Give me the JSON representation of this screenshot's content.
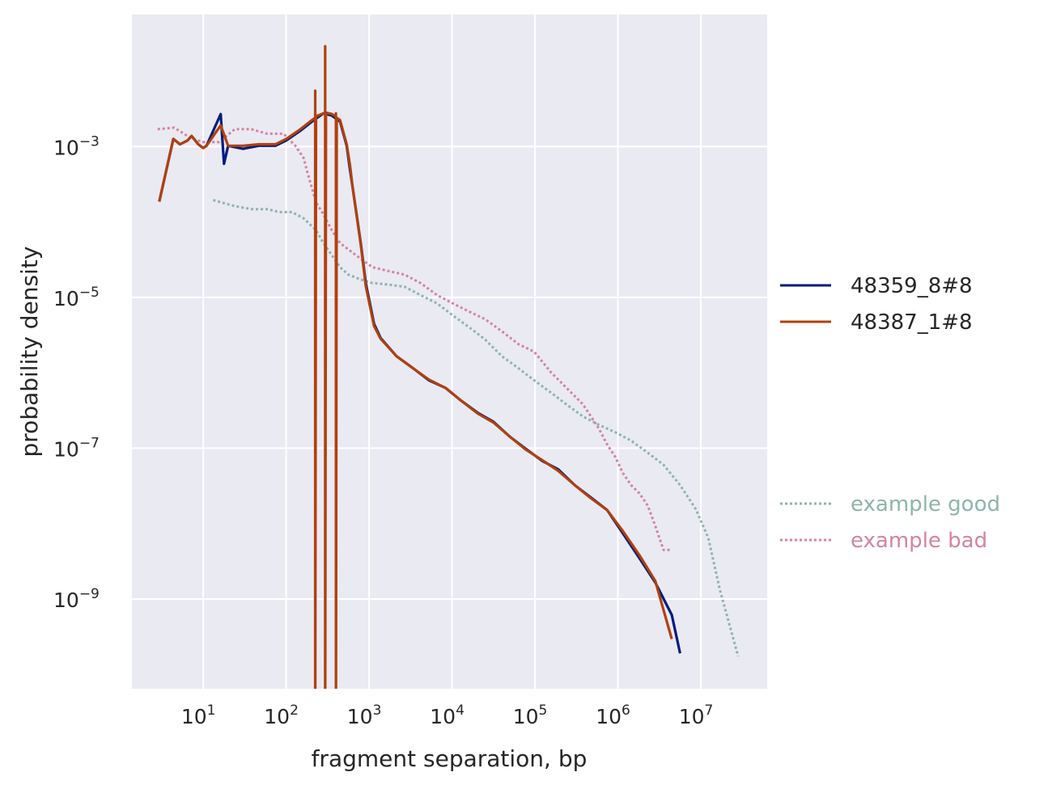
{
  "chart_data": {
    "type": "line",
    "xlabel": "fragment separation, bp",
    "ylabel": "probability density",
    "xscale": "log",
    "yscale": "log",
    "xlim_log10": [
      0.14,
      7.8
    ],
    "ylim_log10": [
      -10.19,
      -1.25
    ],
    "grid": true,
    "legend_placement": "right, outside",
    "x_ticks": [
      {
        "base": "10",
        "exp": "1",
        "log": 1
      },
      {
        "base": "10",
        "exp": "2",
        "log": 2
      },
      {
        "base": "10",
        "exp": "3",
        "log": 3
      },
      {
        "base": "10",
        "exp": "4",
        "log": 4
      },
      {
        "base": "10",
        "exp": "5",
        "log": 5
      },
      {
        "base": "10",
        "exp": "6",
        "log": 6
      },
      {
        "base": "10",
        "exp": "7",
        "log": 7
      }
    ],
    "y_ticks": [
      {
        "base": "10",
        "exp": "−3",
        "log": -3
      },
      {
        "base": "10",
        "exp": "−5",
        "log": -5
      },
      {
        "base": "10",
        "exp": "−7",
        "log": -7
      },
      {
        "base": "10",
        "exp": "−9",
        "log": -9
      }
    ],
    "series": [
      {
        "name": "48359_8#8",
        "color": "#001c7f",
        "style": "solid",
        "x_log10": [
          0.47,
          0.64,
          0.72,
          0.81,
          0.86,
          0.94,
          1.0,
          1.04,
          1.21,
          1.25,
          1.3,
          1.48,
          1.67,
          1.87,
          2.0,
          2.16,
          2.31,
          2.45,
          2.55,
          2.65,
          2.73,
          2.77,
          2.8,
          2.9,
          2.96,
          3.06,
          3.14,
          3.33,
          3.53,
          3.72,
          3.92,
          4.11,
          4.31,
          4.5,
          4.7,
          4.89,
          5.09,
          5.28,
          5.48,
          5.67,
          5.87,
          6.06,
          6.26,
          6.45,
          6.65,
          6.75
        ],
        "y_log10": [
          -3.73,
          -2.9,
          -2.97,
          -2.92,
          -2.86,
          -2.97,
          -3.02,
          -2.99,
          -2.57,
          -3.23,
          -2.99,
          -3.03,
          -2.99,
          -2.99,
          -2.92,
          -2.8,
          -2.67,
          -2.56,
          -2.59,
          -2.67,
          -2.99,
          -3.31,
          -3.53,
          -4.28,
          -4.81,
          -5.35,
          -5.54,
          -5.78,
          -5.94,
          -6.1,
          -6.2,
          -6.37,
          -6.53,
          -6.65,
          -6.85,
          -7.01,
          -7.17,
          -7.28,
          -7.49,
          -7.65,
          -7.82,
          -8.13,
          -8.46,
          -8.78,
          -9.21,
          -9.72
        ]
      },
      {
        "name": "48387_1#8",
        "color": "#b1400d",
        "style": "solid",
        "x_log10": [
          0.47,
          0.64,
          0.72,
          0.81,
          0.86,
          0.94,
          1.0,
          1.04,
          1.21,
          1.3,
          1.48,
          1.67,
          1.87,
          2.0,
          2.16,
          2.31,
          2.35,
          2.35,
          2.35,
          2.36,
          2.45,
          2.47,
          2.47,
          2.47,
          2.48,
          2.55,
          2.6,
          2.6,
          2.6,
          2.61,
          2.65,
          2.73,
          2.77,
          2.8,
          2.9,
          2.96,
          3.06,
          3.14,
          3.33,
          3.53,
          3.72,
          3.92,
          4.11,
          4.31,
          4.5,
          4.7,
          4.89,
          5.09,
          5.28,
          5.48,
          5.67,
          5.87,
          6.06,
          6.26,
          6.45,
          6.65
        ],
        "y_log10": [
          -3.73,
          -2.9,
          -2.97,
          -2.92,
          -2.86,
          -2.97,
          -3.02,
          -2.99,
          -2.72,
          -2.99,
          -2.99,
          -2.97,
          -2.97,
          -2.9,
          -2.78,
          -2.65,
          -2.62,
          -2.26,
          -11,
          -2.6,
          -2.56,
          -2.55,
          -1.67,
          -11,
          -2.55,
          -2.57,
          -2.6,
          -2.56,
          -11,
          -2.62,
          -2.65,
          -2.97,
          -3.25,
          -3.53,
          -4.3,
          -4.85,
          -5.38,
          -5.55,
          -5.78,
          -5.94,
          -6.09,
          -6.2,
          -6.37,
          -6.54,
          -6.66,
          -6.85,
          -7.02,
          -7.16,
          -7.3,
          -7.49,
          -7.66,
          -7.82,
          -8.1,
          -8.42,
          -8.76,
          -9.53
        ]
      },
      {
        "name": "example good",
        "color": "#8db5aa",
        "style": "dotted",
        "x_log10": [
          1.12,
          1.38,
          1.58,
          1.77,
          1.92,
          2.07,
          2.21,
          2.36,
          2.45,
          2.55,
          2.65,
          2.75,
          2.89,
          3.04,
          3.23,
          3.43,
          3.62,
          3.82,
          4.01,
          4.21,
          4.4,
          4.6,
          4.8,
          4.99,
          5.19,
          5.38,
          5.58,
          5.77,
          5.97,
          6.16,
          6.36,
          6.55,
          6.75,
          6.94,
          7.09,
          7.23,
          7.45
        ],
        "y_log10": [
          -3.71,
          -3.79,
          -3.83,
          -3.83,
          -3.87,
          -3.87,
          -3.95,
          -4.11,
          -4.28,
          -4.44,
          -4.6,
          -4.7,
          -4.76,
          -4.81,
          -4.83,
          -4.86,
          -4.97,
          -5.08,
          -5.24,
          -5.4,
          -5.56,
          -5.78,
          -5.94,
          -6.1,
          -6.26,
          -6.42,
          -6.58,
          -6.69,
          -6.79,
          -6.9,
          -7.06,
          -7.22,
          -7.49,
          -7.81,
          -8.19,
          -8.88,
          -9.76
        ]
      },
      {
        "name": "example bad",
        "color": "#d3849f",
        "style": "dotted",
        "x_log10": [
          0.45,
          0.65,
          0.84,
          0.99,
          1.19,
          1.38,
          1.58,
          1.77,
          1.97,
          2.11,
          2.21,
          2.26,
          2.36,
          2.45,
          2.55,
          2.65,
          2.84,
          3.04,
          3.23,
          3.43,
          3.62,
          3.82,
          4.01,
          4.21,
          4.4,
          4.6,
          4.8,
          4.99,
          5.19,
          5.38,
          5.58,
          5.77,
          5.87,
          5.97,
          6.06,
          6.16,
          6.26,
          6.36,
          6.45,
          6.55,
          6.65
        ],
        "y_log10": [
          -2.77,
          -2.75,
          -2.88,
          -2.94,
          -2.94,
          -2.77,
          -2.77,
          -2.83,
          -2.83,
          -2.99,
          -3.15,
          -3.36,
          -3.74,
          -3.9,
          -4.11,
          -4.28,
          -4.44,
          -4.6,
          -4.65,
          -4.7,
          -4.81,
          -4.97,
          -5.08,
          -5.19,
          -5.29,
          -5.45,
          -5.62,
          -5.72,
          -5.99,
          -6.2,
          -6.42,
          -6.74,
          -6.95,
          -7.12,
          -7.33,
          -7.49,
          -7.6,
          -7.76,
          -8.03,
          -8.35,
          -8.35
        ]
      }
    ]
  }
}
